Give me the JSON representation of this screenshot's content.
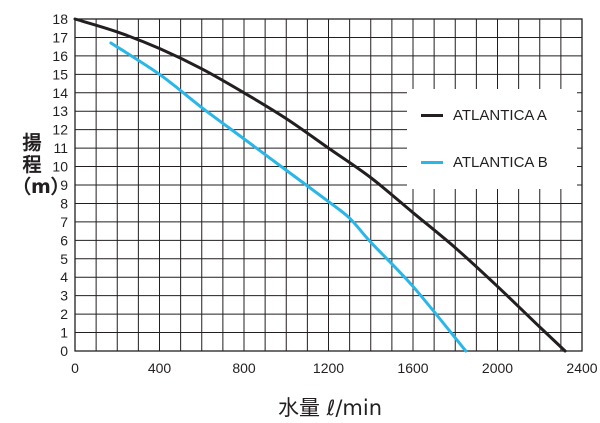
{
  "chart_data": {
    "type": "line",
    "xlabel": "水量 ℓ/min",
    "ylabel_chars": [
      "揚",
      "程",
      "（m）"
    ],
    "xlim": [
      0,
      2400
    ],
    "ylim": [
      0,
      18
    ],
    "x_ticks": [
      0,
      400,
      800,
      1200,
      1600,
      2000,
      2400
    ],
    "y_ticks": [
      0,
      1,
      2,
      3,
      4,
      5,
      6,
      7,
      8,
      9,
      10,
      11,
      12,
      13,
      14,
      15,
      16,
      17,
      18
    ],
    "grid": true,
    "legend_position": "top-right",
    "series": [
      {
        "name": "ATLANTICA A",
        "color": "#231f20",
        "points": [
          [
            0,
            18.0
          ],
          [
            200,
            17.3
          ],
          [
            400,
            16.4
          ],
          [
            600,
            15.3
          ],
          [
            800,
            14.0
          ],
          [
            1000,
            12.6
          ],
          [
            1200,
            11.0
          ],
          [
            1400,
            9.4
          ],
          [
            1600,
            7.5
          ],
          [
            1800,
            5.6
          ],
          [
            2000,
            3.5
          ],
          [
            2200,
            1.3
          ],
          [
            2320,
            0
          ]
        ]
      },
      {
        "name": "ATLANTICA B",
        "color": "#29b6e8",
        "points": [
          [
            170,
            16.7
          ],
          [
            400,
            15.0
          ],
          [
            600,
            13.2
          ],
          [
            800,
            11.5
          ],
          [
            1000,
            9.8
          ],
          [
            1200,
            8.1
          ],
          [
            1300,
            7.2
          ],
          [
            1400,
            5.9
          ],
          [
            1600,
            3.5
          ],
          [
            1850,
            0
          ]
        ]
      }
    ]
  }
}
